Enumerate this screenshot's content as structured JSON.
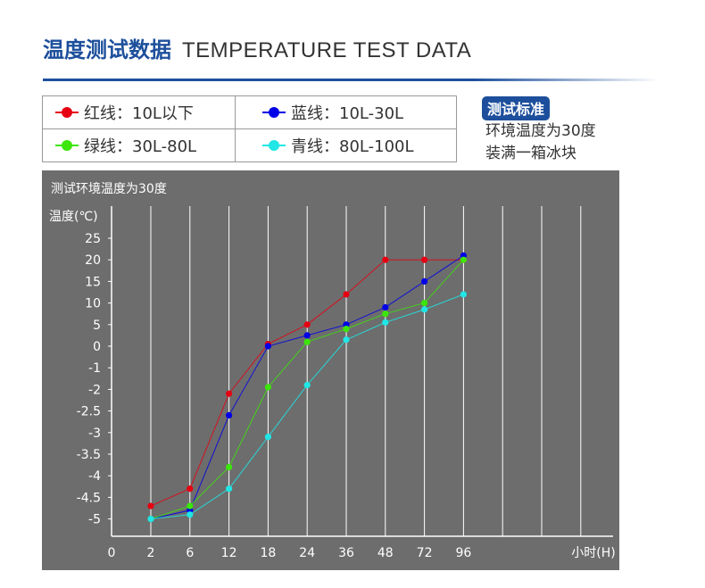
{
  "header": {
    "title_cn": "温度测试数据",
    "title_en": "TEMPERATURE TEST DATA"
  },
  "legend": [
    {
      "label": "红线：10L以下",
      "color": "#e60012"
    },
    {
      "label": "蓝线：10L-30L",
      "color": "#0000e6"
    },
    {
      "label": "绿线：30L-80L",
      "color": "#3ce60a"
    },
    {
      "label": "青线：80L-100L",
      "color": "#20e6e6"
    }
  ],
  "test_standard": {
    "badge": "测试标准",
    "lines": [
      "环境温度为30度",
      "装满一箱冰块"
    ]
  },
  "chart_data": {
    "type": "line",
    "title": "测试环境温度为30度",
    "ylabel": "温度(℃)",
    "xlabel": "小时(H)",
    "origin_label": "0",
    "categories": [
      "2",
      "6",
      "12",
      "18",
      "24",
      "36",
      "48",
      "72",
      "96"
    ],
    "y_ticks": [
      "25",
      "20",
      "15",
      "10",
      "5",
      "0",
      "-1",
      "-2",
      "-2.5",
      "-3",
      "-3.5",
      "-4",
      "-4.5",
      "-5"
    ],
    "series": [
      {
        "name": "红线：10L以下",
        "color": "#e60012",
        "values": [
          -4.7,
          -4.3,
          -2.1,
          0.5,
          5,
          12,
          20,
          20,
          20
        ]
      },
      {
        "name": "蓝线：10L-30L",
        "color": "#0000e6",
        "values": [
          -5,
          -4.8,
          -2.6,
          0,
          2.5,
          5,
          9,
          15,
          21
        ]
      },
      {
        "name": "绿线：30L-80L",
        "color": "#3ce60a",
        "values": [
          -5,
          -4.7,
          -3.8,
          -1.9,
          1,
          4,
          7.5,
          10,
          20
        ]
      },
      {
        "name": "青线：80L-100L",
        "color": "#20e6e6",
        "values": [
          -5,
          -4.9,
          -4.3,
          -3.1,
          -1.8,
          1.5,
          5.5,
          8.5,
          12
        ]
      }
    ],
    "background": "#6d6d6d",
    "grid": true
  }
}
